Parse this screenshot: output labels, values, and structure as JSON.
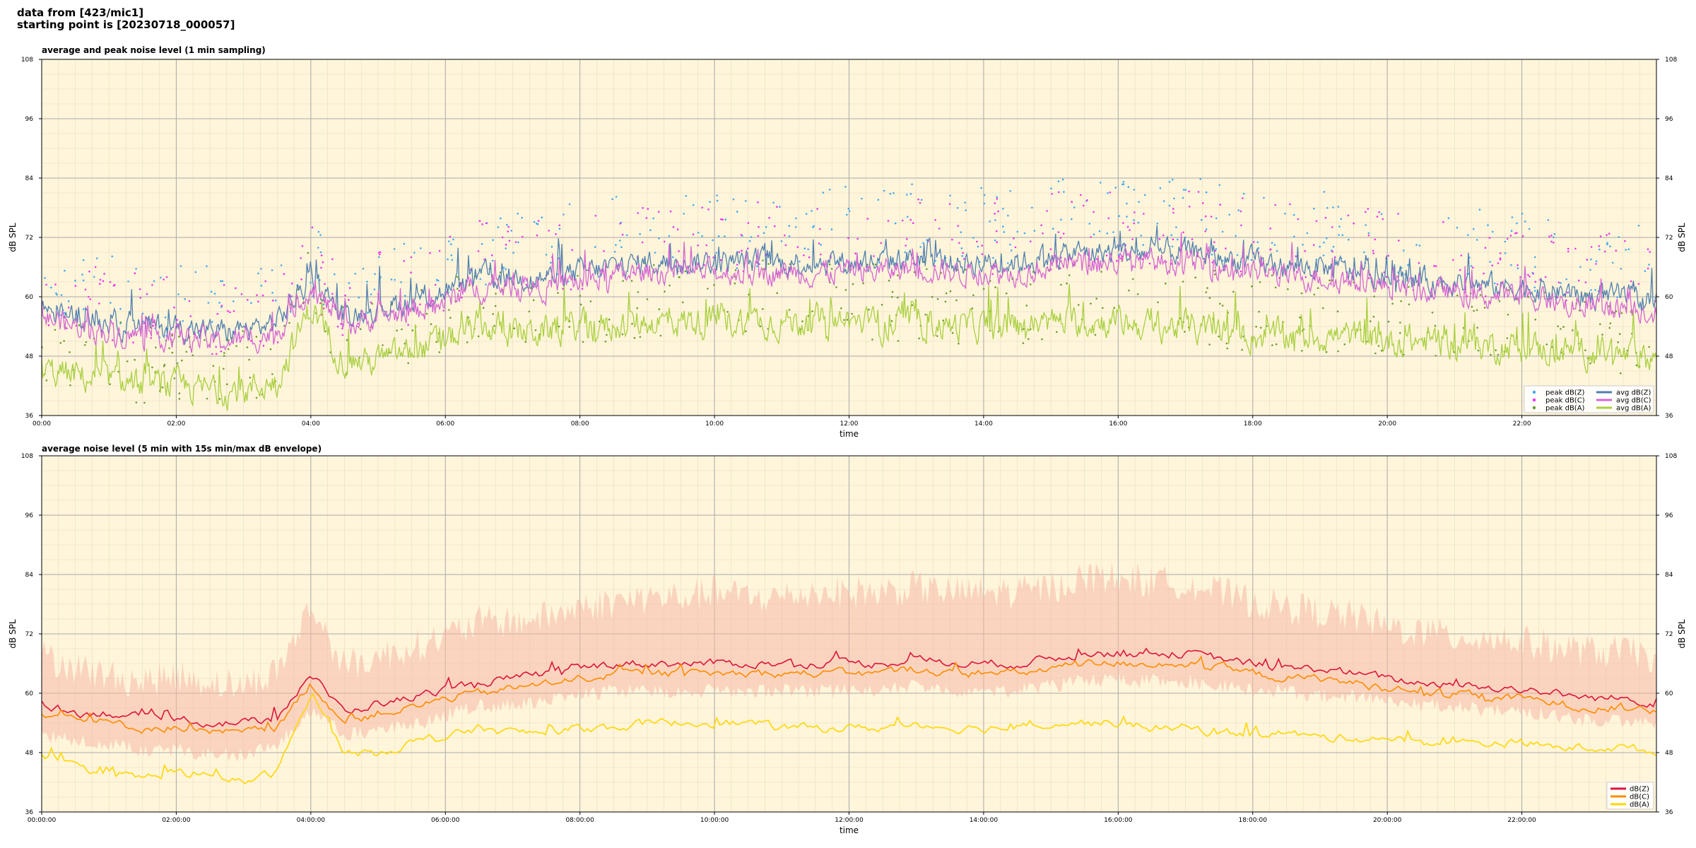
{
  "header": {
    "line1": "data from [423/mic1]",
    "line2": "starting point is [20230718_000057]"
  },
  "colors": {
    "background": "#fff5da",
    "peak_z": "#3fa9f5",
    "peak_c": "#ee33ee",
    "peak_a": "#6b9b2e",
    "avg_z": "#5080b0",
    "avg_c": "#d466d4",
    "avg_a": "#a8d040",
    "db_z": "#dc143c",
    "db_c": "#ff8c00",
    "db_a": "#ffd700",
    "envelope": "#f5b8a8"
  },
  "chart_data": [
    {
      "type": "line",
      "title": "average and peak noise level (1 min sampling)",
      "xlabel": "time",
      "ylabel": "dB SPL",
      "xlim": [
        0,
        24
      ],
      "ylim": [
        36,
        108
      ],
      "yticks": [
        "36",
        "48",
        "60",
        "72",
        "84",
        "96",
        "108"
      ],
      "xticks": [
        "00:00",
        "02:00",
        "04:00",
        "06:00",
        "08:00",
        "10:00",
        "12:00",
        "14:00",
        "16:00",
        "18:00",
        "20:00",
        "22:00"
      ],
      "grid": true,
      "legend_position": "lower-right",
      "x": [
        0,
        0.5,
        1,
        1.5,
        2,
        2.5,
        3,
        3.5,
        4,
        4.5,
        5,
        5.5,
        6,
        6.5,
        7,
        7.5,
        8,
        8.5,
        9,
        9.5,
        10,
        10.5,
        11,
        11.5,
        12,
        12.5,
        13,
        13.5,
        14,
        14.5,
        15,
        15.5,
        16,
        16.5,
        17,
        17.5,
        18,
        18.5,
        19,
        19.5,
        20,
        20.5,
        21,
        21.5,
        22,
        22.5,
        23,
        23.5,
        24
      ],
      "series": [
        {
          "name": "peak dB(Z)",
          "style": "points",
          "values": [
            62,
            60,
            58,
            57,
            57,
            56,
            56,
            58,
            66,
            59,
            61,
            62,
            64,
            67,
            67,
            68,
            69,
            70,
            71,
            71,
            71,
            71,
            72,
            72,
            72,
            72,
            73,
            72,
            72,
            72,
            73,
            74,
            74,
            74,
            74,
            73,
            72,
            71,
            71,
            70,
            69,
            68,
            68,
            67,
            67,
            66,
            65,
            65,
            64
          ]
        },
        {
          "name": "peak dB(C)",
          "style": "points",
          "values": [
            60,
            58,
            56,
            55,
            55,
            54,
            54,
            56,
            64,
            57,
            59,
            60,
            62,
            65,
            65,
            66,
            67,
            68,
            69,
            69,
            69,
            69,
            70,
            70,
            70,
            70,
            71,
            70,
            70,
            70,
            71,
            72,
            72,
            72,
            72,
            71,
            70,
            69,
            69,
            68,
            67,
            66,
            66,
            65,
            65,
            64,
            63,
            63,
            62
          ]
        },
        {
          "name": "peak dB(A)",
          "style": "points",
          "values": [
            48,
            46,
            45,
            44,
            44,
            43,
            43,
            45,
            60,
            48,
            49,
            51,
            53,
            56,
            55,
            55,
            56,
            56,
            57,
            57,
            57,
            57,
            57,
            57,
            57,
            56,
            57,
            56,
            56,
            56,
            57,
            57,
            57,
            56,
            56,
            55,
            54,
            54,
            54,
            54,
            53,
            53,
            53,
            52,
            52,
            51,
            51,
            50,
            50
          ]
        },
        {
          "name": "avg dB(Z)",
          "style": "line",
          "values": [
            58,
            56,
            55,
            54,
            54,
            53,
            53,
            55,
            64,
            56,
            58,
            59,
            61,
            64,
            64,
            64,
            65,
            66,
            67,
            67,
            67,
            67,
            67,
            67,
            67,
            67,
            68,
            67,
            67,
            67,
            68,
            69,
            69,
            69,
            69,
            68,
            67,
            66,
            66,
            65,
            64,
            63,
            63,
            62,
            62,
            61,
            60,
            60,
            59
          ]
        },
        {
          "name": "avg dB(C)",
          "style": "line",
          "values": [
            56,
            54,
            53,
            52,
            52,
            51,
            51,
            53,
            62,
            54,
            56,
            57,
            59,
            62,
            62,
            62,
            63,
            64,
            65,
            65,
            65,
            65,
            65,
            65,
            65,
            65,
            66,
            65,
            65,
            65,
            66,
            67,
            67,
            67,
            67,
            66,
            65,
            64,
            64,
            63,
            62,
            61,
            61,
            60,
            60,
            59,
            58,
            58,
            57
          ]
        },
        {
          "name": "avg dB(A)",
          "style": "line",
          "values": [
            45,
            44,
            43,
            42,
            42,
            41,
            41,
            43,
            58,
            47,
            47,
            49,
            51,
            54,
            53,
            53,
            54,
            54,
            55,
            55,
            55,
            55,
            55,
            55,
            55,
            54,
            55,
            54,
            54,
            54,
            55,
            55,
            55,
            54,
            54,
            53,
            52,
            52,
            52,
            52,
            51,
            51,
            51,
            50,
            50,
            49,
            49,
            48,
            48
          ]
        }
      ]
    },
    {
      "type": "line",
      "title": "average noise level (5 min with 15s min/max dB envelope)",
      "xlabel": "time",
      "ylabel": "dB SPL",
      "xlim": [
        0,
        24
      ],
      "ylim": [
        36,
        108
      ],
      "yticks": [
        "36",
        "48",
        "60",
        "72",
        "84",
        "96",
        "108"
      ],
      "xticks": [
        "00:00:00",
        "02:00:00",
        "04:00:00",
        "06:00:00",
        "08:00:00",
        "10:00:00",
        "12:00:00",
        "14:00:00",
        "16:00:00",
        "18:00:00",
        "20:00:00",
        "22:00:00"
      ],
      "grid": true,
      "legend_position": "lower-right",
      "x": [
        0,
        0.5,
        1,
        1.5,
        2,
        2.5,
        3,
        3.5,
        4,
        4.5,
        5,
        5.5,
        6,
        6.5,
        7,
        7.5,
        8,
        8.5,
        9,
        9.5,
        10,
        10.5,
        11,
        11.5,
        12,
        12.5,
        13,
        13.5,
        14,
        14.5,
        15,
        15.5,
        16,
        16.5,
        17,
        17.5,
        18,
        18.5,
        19,
        19.5,
        20,
        20.5,
        21,
        21.5,
        22,
        22.5,
        23,
        23.5,
        24
      ],
      "envelope": {
        "min": [
          53,
          52,
          51,
          50,
          50,
          49,
          49,
          51,
          58,
          53,
          54,
          55,
          57,
          59,
          59,
          60,
          61,
          62,
          62,
          62,
          62,
          62,
          62,
          62,
          62,
          62,
          63,
          62,
          62,
          62,
          63,
          64,
          64,
          64,
          64,
          63,
          62,
          62,
          61,
          61,
          60,
          59,
          59,
          58,
          58,
          57,
          56,
          56,
          55
        ],
        "max": [
          66,
          64,
          62,
          61,
          62,
          61,
          60,
          63,
          76,
          64,
          66,
          68,
          70,
          73,
          73,
          74,
          76,
          77,
          78,
          78,
          79,
          78,
          78,
          79,
          79,
          79,
          80,
          79,
          79,
          79,
          80,
          82,
          82,
          81,
          81,
          79,
          77,
          76,
          75,
          74,
          72,
          71,
          70,
          70,
          69,
          68,
          67,
          67,
          66
        ]
      },
      "series": [
        {
          "name": "dB(Z)",
          "values": [
            58,
            56,
            56,
            55,
            55,
            54,
            54,
            55,
            64,
            56,
            58,
            59,
            61,
            62,
            63,
            64,
            65,
            66,
            66,
            66,
            66,
            66,
            66,
            66,
            66,
            66,
            67,
            66,
            66,
            66,
            67,
            68,
            68,
            68,
            68,
            67,
            66,
            65,
            65,
            64,
            63,
            62,
            62,
            61,
            61,
            60,
            59,
            59,
            58
          ]
        },
        {
          "name": "dB(C)",
          "values": [
            56,
            55,
            54,
            53,
            53,
            52,
            52,
            53,
            62,
            54,
            56,
            57,
            59,
            60,
            61,
            62,
            63,
            64,
            64,
            64,
            64,
            64,
            64,
            64,
            64,
            64,
            65,
            64,
            64,
            64,
            65,
            66,
            66,
            66,
            66,
            65,
            64,
            63,
            63,
            62,
            61,
            60,
            60,
            59,
            59,
            58,
            57,
            57,
            56
          ]
        },
        {
          "name": "dB(A)",
          "values": [
            47,
            45,
            44,
            43,
            44,
            43,
            42,
            44,
            60,
            48,
            48,
            50,
            51,
            53,
            52,
            52,
            53,
            53,
            54,
            54,
            54,
            54,
            53,
            53,
            53,
            53,
            54,
            53,
            53,
            53,
            54,
            54,
            54,
            53,
            53,
            52,
            52,
            52,
            51,
            51,
            51,
            50,
            50,
            50,
            50,
            49,
            49,
            49,
            48
          ]
        }
      ]
    }
  ]
}
